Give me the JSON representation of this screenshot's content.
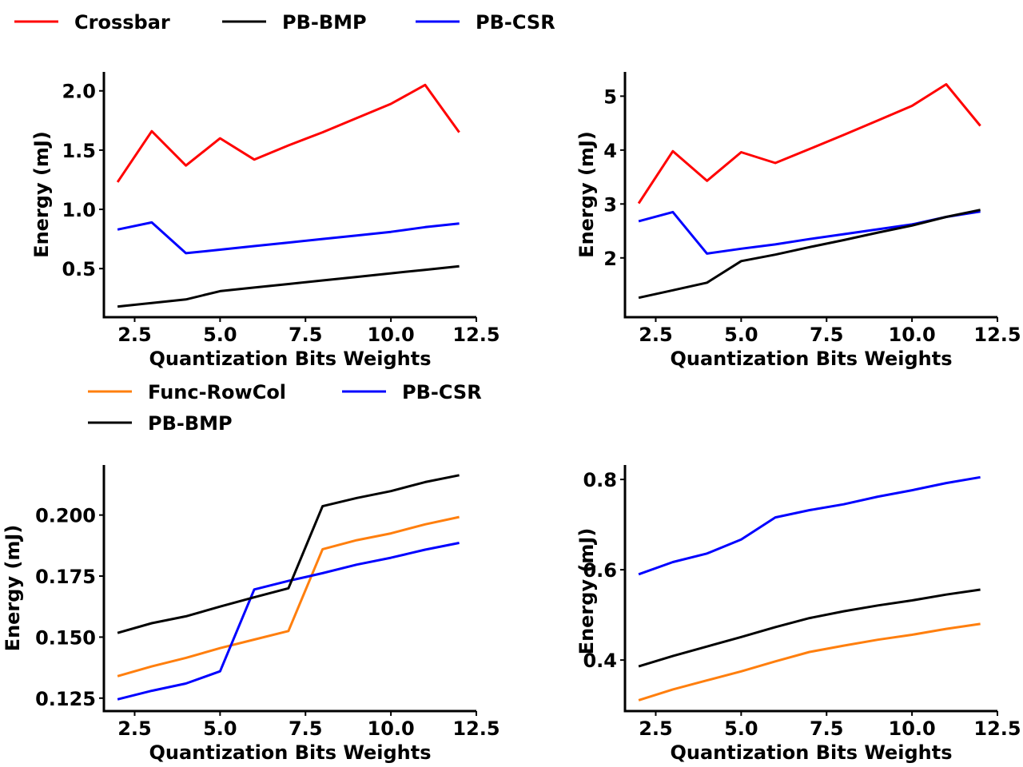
{
  "legends": [
    {
      "entries": [
        {
          "label": "Crossbar",
          "color": "#ff0000"
        },
        {
          "label": "PB-BMP",
          "color": "#000000"
        },
        {
          "label": "PB-CSR",
          "color": "#0000ff"
        }
      ]
    },
    {
      "entries": [
        {
          "label": "Func-RowCol",
          "color": "#ff7f0e"
        },
        {
          "label": "PB-CSR",
          "color": "#0000ff"
        },
        {
          "label": "PB-BMP",
          "color": "#000000"
        }
      ]
    }
  ],
  "chart_data": [
    {
      "type": "line",
      "xlabel": "Quantization Bits Weights",
      "ylabel": "Energy (mJ)",
      "xlim": [
        1.6,
        12.5
      ],
      "ylim": [
        0.09,
        2.16
      ],
      "xticks": [
        2.5,
        5.0,
        7.5,
        10.0,
        12.5
      ],
      "xtick_labels": [
        "2.5",
        "5.0",
        "7.5",
        "10.0",
        "12.5"
      ],
      "yticks": [
        0.5,
        1.0,
        1.5,
        2.0
      ],
      "ytick_labels": [
        "0.5",
        "1.0",
        "1.5",
        "2.0"
      ],
      "x": [
        2,
        3,
        4,
        5,
        6,
        7,
        8,
        9,
        10,
        11,
        12
      ],
      "series": [
        {
          "name": "Crossbar",
          "color": "#ff0000",
          "values": [
            1.23,
            1.66,
            1.37,
            1.6,
            1.42,
            1.54,
            1.65,
            1.77,
            1.89,
            2.05,
            1.65
          ]
        },
        {
          "name": "PB-CSR",
          "color": "#0000ff",
          "values": [
            0.83,
            0.89,
            0.63,
            0.66,
            0.69,
            0.72,
            0.75,
            0.78,
            0.81,
            0.85,
            0.88
          ]
        },
        {
          "name": "PB-BMP",
          "color": "#000000",
          "values": [
            0.18,
            0.21,
            0.24,
            0.31,
            0.34,
            0.37,
            0.4,
            0.43,
            0.46,
            0.49,
            0.52
          ]
        }
      ]
    },
    {
      "type": "line",
      "xlabel": "Quantization Bits Weights",
      "ylabel": "Energy (mJ)",
      "xlim": [
        1.6,
        12.5
      ],
      "ylim": [
        0.9,
        5.45
      ],
      "xticks": [
        2.5,
        5.0,
        7.5,
        10.0,
        12.5
      ],
      "xtick_labels": [
        "2.5",
        "5.0",
        "7.5",
        "10.0",
        "12.5"
      ],
      "yticks": [
        2,
        3,
        4,
        5
      ],
      "ytick_labels": [
        "2",
        "3",
        "4",
        "5"
      ],
      "x": [
        2,
        3,
        4,
        5,
        6,
        7,
        8,
        9,
        10,
        11,
        12
      ],
      "series": [
        {
          "name": "Crossbar",
          "color": "#ff0000",
          "values": [
            3.01,
            3.98,
            3.43,
            3.96,
            3.76,
            4.02,
            4.28,
            4.55,
            4.82,
            5.22,
            4.45
          ]
        },
        {
          "name": "PB-CSR",
          "color": "#0000ff",
          "values": [
            2.68,
            2.85,
            2.08,
            2.17,
            2.25,
            2.35,
            2.44,
            2.53,
            2.62,
            2.76,
            2.86
          ]
        },
        {
          "name": "PB-BMP",
          "color": "#000000",
          "values": [
            1.26,
            1.4,
            1.54,
            1.94,
            2.06,
            2.2,
            2.33,
            2.47,
            2.6,
            2.76,
            2.89
          ]
        }
      ]
    },
    {
      "type": "line",
      "xlabel": "Quantization Bits Weights",
      "ylabel": "Energy (mJ)",
      "xlim": [
        1.6,
        12.5
      ],
      "ylim": [
        0.1197,
        0.2205
      ],
      "xticks": [
        2.5,
        5.0,
        7.5,
        10.0,
        12.5
      ],
      "xtick_labels": [
        "2.5",
        "5.0",
        "7.5",
        "10.0",
        "12.5"
      ],
      "yticks": [
        0.125,
        0.15,
        0.175,
        0.2
      ],
      "ytick_labels": [
        "0.125",
        "0.150",
        "0.175",
        "0.200"
      ],
      "x": [
        2,
        3,
        4,
        5,
        6,
        7,
        8,
        9,
        10,
        11,
        12
      ],
      "series": [
        {
          "name": "Func-RowCol",
          "color": "#ff7f0e",
          "values": [
            0.134,
            0.138,
            0.1415,
            0.1455,
            0.149,
            0.1525,
            0.186,
            0.1897,
            0.1925,
            0.1962,
            0.1992
          ]
        },
        {
          "name": "PB-CSR",
          "color": "#0000ff",
          "values": [
            0.1245,
            0.128,
            0.131,
            0.136,
            0.1695,
            0.173,
            0.1762,
            0.1797,
            0.1825,
            0.1858,
            0.1886
          ]
        },
        {
          "name": "PB-BMP",
          "color": "#000000",
          "values": [
            0.1517,
            0.1557,
            0.1585,
            0.1625,
            0.1663,
            0.17,
            0.2036,
            0.207,
            0.2098,
            0.2135,
            0.2163
          ]
        }
      ]
    },
    {
      "type": "line",
      "xlabel": "Quantization Bits Weights",
      "ylabel": "Energy (mJ)",
      "xlim": [
        1.6,
        12.5
      ],
      "ylim": [
        0.287,
        0.832
      ],
      "xticks": [
        2.5,
        5.0,
        7.5,
        10.0,
        12.5
      ],
      "xtick_labels": [
        "2.5",
        "5.0",
        "7.5",
        "10.0",
        "12.5"
      ],
      "yticks": [
        0.4,
        0.6,
        0.8
      ],
      "ytick_labels": [
        "0.4",
        "0.6",
        "0.8"
      ],
      "x": [
        2,
        3,
        4,
        5,
        6,
        7,
        8,
        9,
        10,
        11,
        12
      ],
      "series": [
        {
          "name": "PB-CSR",
          "color": "#0000ff",
          "values": [
            0.59,
            0.617,
            0.636,
            0.667,
            0.716,
            0.732,
            0.745,
            0.762,
            0.776,
            0.792,
            0.805
          ]
        },
        {
          "name": "PB-BMP",
          "color": "#000000",
          "values": [
            0.386,
            0.409,
            0.43,
            0.451,
            0.473,
            0.493,
            0.508,
            0.521,
            0.532,
            0.545,
            0.556
          ]
        },
        {
          "name": "Func-RowCol",
          "color": "#ff7f0e",
          "values": [
            0.311,
            0.335,
            0.355,
            0.375,
            0.397,
            0.418,
            0.432,
            0.445,
            0.456,
            0.469,
            0.48
          ]
        }
      ]
    }
  ]
}
